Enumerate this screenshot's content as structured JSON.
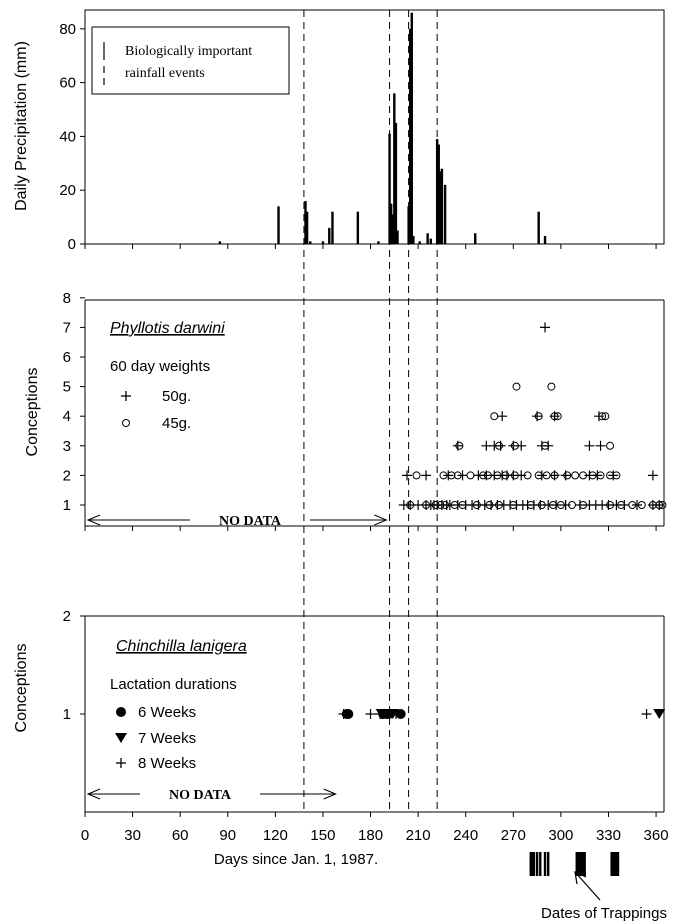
{
  "chart_data": [
    {
      "type": "bar",
      "panel": "precipitation",
      "ylabel": "Daily Precipitation (mm)",
      "ylim": [
        0,
        87
      ],
      "yticks": [
        "0",
        "20",
        "40",
        "60",
        "80"
      ],
      "legend_lines": [
        "Biologically important",
        "rainfall events"
      ],
      "bars": [
        {
          "x": 85,
          "y": 1
        },
        {
          "x": 122,
          "y": 14
        },
        {
          "x": 139,
          "y": 16
        },
        {
          "x": 140,
          "y": 12
        },
        {
          "x": 142,
          "y": 1
        },
        {
          "x": 150,
          "y": 1
        },
        {
          "x": 154,
          "y": 6
        },
        {
          "x": 156,
          "y": 12
        },
        {
          "x": 172,
          "y": 12
        },
        {
          "x": 185,
          "y": 1
        },
        {
          "x": 192,
          "y": 41
        },
        {
          "x": 193,
          "y": 15
        },
        {
          "x": 194,
          "y": 11
        },
        {
          "x": 195,
          "y": 56
        },
        {
          "x": 196,
          "y": 45
        },
        {
          "x": 197,
          "y": 5
        },
        {
          "x": 204,
          "y": 14
        },
        {
          "x": 205,
          "y": 80
        },
        {
          "x": 206,
          "y": 86
        },
        {
          "x": 207,
          "y": 3
        },
        {
          "x": 211,
          "y": 1
        },
        {
          "x": 216,
          "y": 4
        },
        {
          "x": 218,
          "y": 2
        },
        {
          "x": 222,
          "y": 39
        },
        {
          "x": 223,
          "y": 37
        },
        {
          "x": 224,
          "y": 27
        },
        {
          "x": 225,
          "y": 28
        },
        {
          "x": 227,
          "y": 22
        },
        {
          "x": 246,
          "y": 4
        },
        {
          "x": 286,
          "y": 12
        },
        {
          "x": 290,
          "y": 3
        }
      ]
    },
    {
      "type": "scatter",
      "panel": "phyllotis",
      "title": "Phyllotis darwini",
      "ylabel": "Conceptions",
      "ylim": [
        0.5,
        8
      ],
      "yticks": [
        "1",
        "2",
        "3",
        "4",
        "5",
        "6",
        "7",
        "8"
      ],
      "legend_title": "60 day weights",
      "no_data": "NO DATA",
      "no_data_range": [
        0,
        190
      ],
      "series": [
        {
          "name": "50g.",
          "marker": "plus",
          "points": [
            [
              201,
              1
            ],
            [
              205,
              1
            ],
            [
              210,
              1
            ],
            [
              215,
              1
            ],
            [
              218,
              1
            ],
            [
              220,
              1
            ],
            [
              222,
              1
            ],
            [
              225,
              1
            ],
            [
              228,
              1
            ],
            [
              230,
              1
            ],
            [
              235,
              1
            ],
            [
              240,
              1
            ],
            [
              244,
              1
            ],
            [
              248,
              1
            ],
            [
              252,
              1
            ],
            [
              256,
              1
            ],
            [
              260,
              1
            ],
            [
              264,
              1
            ],
            [
              268,
              1
            ],
            [
              272,
              1
            ],
            [
              276,
              1
            ],
            [
              279,
              1
            ],
            [
              283,
              1
            ],
            [
              287,
              1
            ],
            [
              292,
              1
            ],
            [
              297,
              1
            ],
            [
              303,
              1
            ],
            [
              312,
              1
            ],
            [
              318,
              1
            ],
            [
              322,
              1
            ],
            [
              326,
              1
            ],
            [
              330,
              1
            ],
            [
              335,
              1
            ],
            [
              340,
              1
            ],
            [
              348,
              1
            ],
            [
              358,
              1
            ],
            [
              362,
              1
            ],
            [
              203,
              2
            ],
            [
              215,
              2
            ],
            [
              229,
              2
            ],
            [
              238,
              2
            ],
            [
              248,
              2
            ],
            [
              253,
              2
            ],
            [
              258,
              2
            ],
            [
              263,
              2
            ],
            [
              266,
              2
            ],
            [
              270,
              2
            ],
            [
              275,
              2
            ],
            [
              288,
              2
            ],
            [
              296,
              2
            ],
            [
              303,
              2
            ],
            [
              318,
              2
            ],
            [
              323,
              2
            ],
            [
              333,
              2
            ],
            [
              358,
              2
            ],
            [
              235,
              3
            ],
            [
              253,
              3
            ],
            [
              258,
              3
            ],
            [
              262,
              3
            ],
            [
              270,
              3
            ],
            [
              275,
              3
            ],
            [
              288,
              3
            ],
            [
              292,
              3
            ],
            [
              318,
              3
            ],
            [
              325,
              3
            ],
            [
              263,
              4
            ],
            [
              285,
              4
            ],
            [
              296,
              4
            ],
            [
              324,
              4
            ],
            [
              290,
              7
            ]
          ]
        },
        {
          "name": "45g.",
          "marker": "circle",
          "points": [
            [
              205,
              1
            ],
            [
              215,
              1
            ],
            [
              221,
              1
            ],
            [
              224,
              1
            ],
            [
              227,
              1
            ],
            [
              233,
              1
            ],
            [
              238,
              1
            ],
            [
              247,
              1
            ],
            [
              255,
              1
            ],
            [
              261,
              1
            ],
            [
              270,
              1
            ],
            [
              281,
              1
            ],
            [
              288,
              1
            ],
            [
              295,
              1
            ],
            [
              300,
              1
            ],
            [
              307,
              1
            ],
            [
              314,
              1
            ],
            [
              331,
              1
            ],
            [
              338,
              1
            ],
            [
              345,
              1
            ],
            [
              351,
              1
            ],
            [
              358,
              1
            ],
            [
              362,
              1
            ],
            [
              364,
              1
            ],
            [
              209,
              2
            ],
            [
              226,
              2
            ],
            [
              231,
              2
            ],
            [
              235,
              2
            ],
            [
              243,
              2
            ],
            [
              251,
              2
            ],
            [
              254,
              2
            ],
            [
              260,
              2
            ],
            [
              265,
              2
            ],
            [
              271,
              2
            ],
            [
              279,
              2
            ],
            [
              286,
              2
            ],
            [
              291,
              2
            ],
            [
              296,
              2
            ],
            [
              304,
              2
            ],
            [
              309,
              2
            ],
            [
              314,
              2
            ],
            [
              320,
              2
            ],
            [
              325,
              2
            ],
            [
              331,
              2
            ],
            [
              335,
              2
            ],
            [
              236,
              3
            ],
            [
              261,
              3
            ],
            [
              271,
              3
            ],
            [
              290,
              3
            ],
            [
              331,
              3
            ],
            [
              258,
              4
            ],
            [
              286,
              4
            ],
            [
              296,
              4
            ],
            [
              298,
              4
            ],
            [
              326,
              4
            ],
            [
              328,
              4
            ],
            [
              272,
              5
            ],
            [
              294,
              5
            ]
          ]
        }
      ]
    },
    {
      "type": "scatter",
      "panel": "chinchilla",
      "title": "Chinchilla lanigera",
      "ylabel": "Conceptions",
      "ylim": [
        0,
        2
      ],
      "yticks": [
        "1",
        "2"
      ],
      "legend_title": "Lactation durations",
      "no_data": "NO DATA",
      "no_data_range": [
        0,
        158
      ],
      "series": [
        {
          "name": "6 Weeks",
          "marker": "dot",
          "points": [
            [
              165,
              1
            ],
            [
              166,
              1
            ],
            [
              188,
              1
            ],
            [
              190,
              1
            ],
            [
              191,
              1
            ],
            [
              199,
              1
            ]
          ]
        },
        {
          "name": "7 Weeks",
          "marker": "triangle",
          "points": [
            [
              187,
              1
            ],
            [
              192,
              1
            ],
            [
              193,
              1
            ],
            [
              194,
              1
            ],
            [
              362,
              1
            ]
          ]
        },
        {
          "name": "8 Weeks",
          "marker": "plus",
          "points": [
            [
              163,
              1
            ],
            [
              180,
              1
            ],
            [
              186,
              1
            ],
            [
              196,
              1
            ],
            [
              354,
              1
            ]
          ]
        }
      ]
    }
  ],
  "x_axis": {
    "label": "Days since Jan. 1, 1987.",
    "xlim": [
      0,
      365
    ],
    "ticks": [
      "0",
      "30",
      "60",
      "90",
      "120",
      "150",
      "180",
      "210",
      "240",
      "270",
      "300",
      "330",
      "360"
    ]
  },
  "rain_event_days": [
    138,
    192,
    204,
    222
  ],
  "trappings": {
    "label": "Dates of Trappings",
    "days": [
      281,
      282,
      283,
      285,
      287,
      290,
      292,
      310,
      311,
      312,
      313,
      314,
      315,
      332,
      333,
      334,
      335,
      336
    ]
  }
}
